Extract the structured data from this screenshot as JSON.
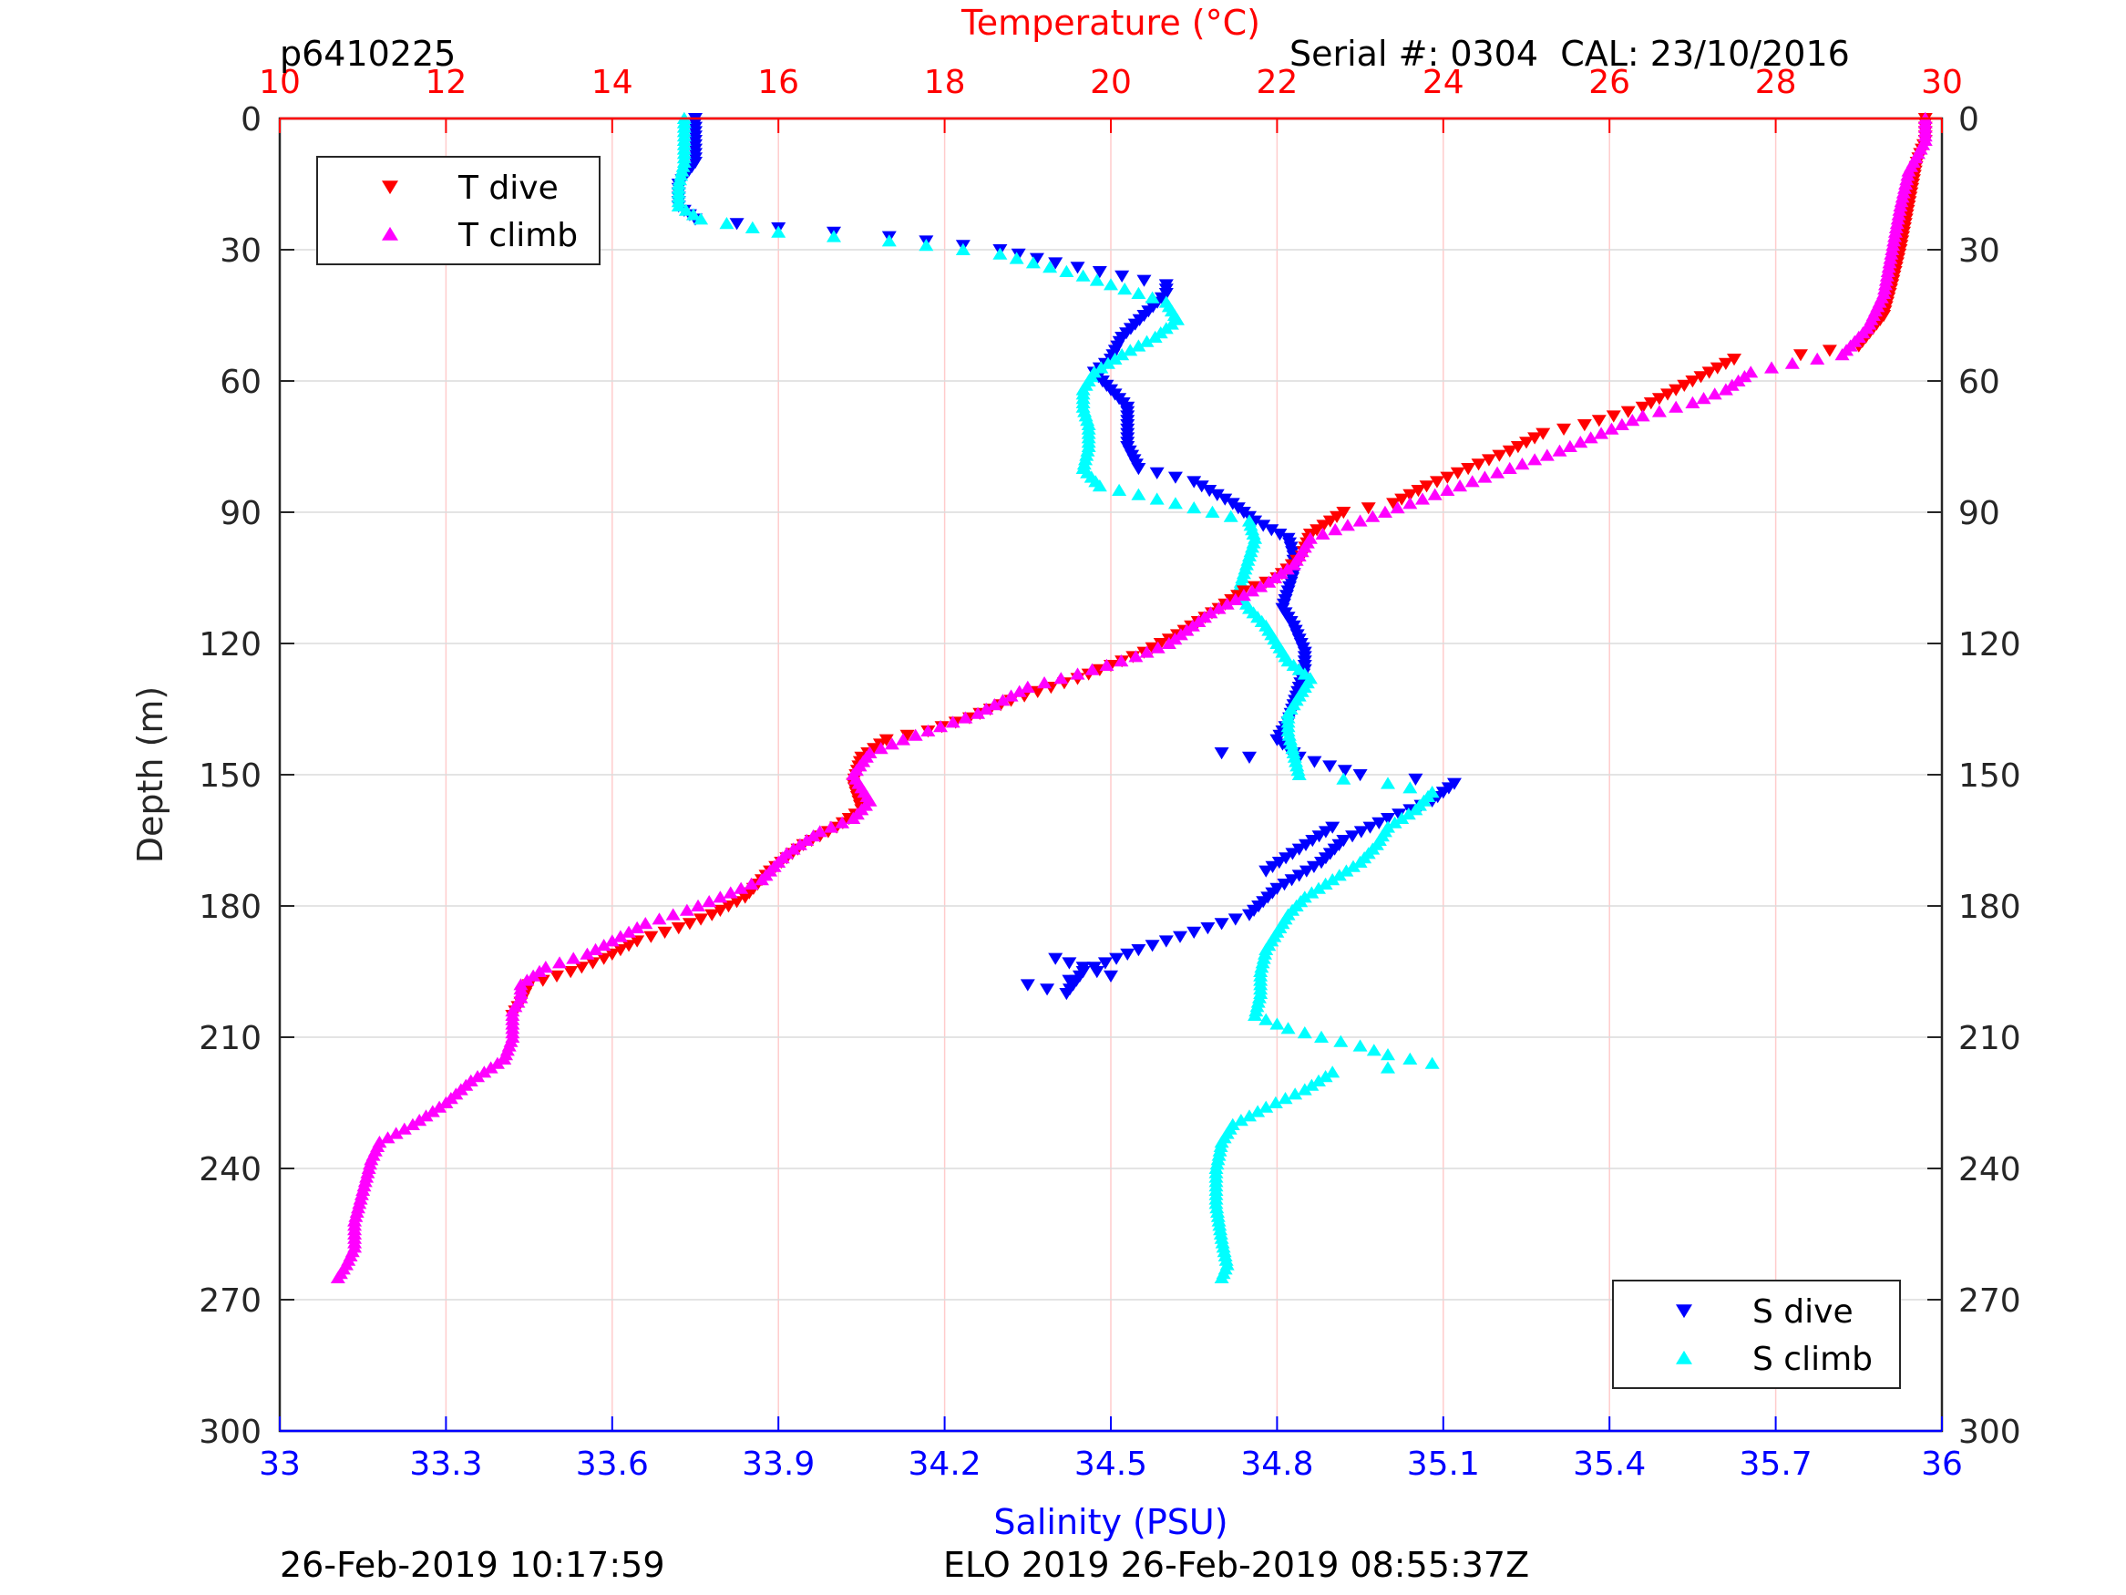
{
  "header": {
    "profile_id": "p6410225",
    "serial": "Serial #: 0304  CAL: 23/10/2016"
  },
  "footer": {
    "left": "26-Feb-2019 10:17:59",
    "center": "ELO 2019 26-Feb-2019 08:55:37Z"
  },
  "chart_data": {
    "type": "scatter",
    "top_axis": {
      "label": "Temperature (°C)",
      "range": [
        10,
        30
      ],
      "ticks": [
        10,
        12,
        14,
        16,
        18,
        20,
        22,
        24,
        26,
        28,
        30
      ],
      "color": "#ff0000"
    },
    "bottom_axis": {
      "label": "Salinity (PSU)",
      "range": [
        33,
        36
      ],
      "ticks": [
        "33",
        "33.3",
        "33.6",
        "33.9",
        "34.2",
        "34.5",
        "34.8",
        "35.1",
        "35.4",
        "35.7",
        "36"
      ],
      "color": "#0000ff"
    },
    "y_axis": {
      "label": "Depth (m)",
      "range": [
        0,
        300
      ],
      "reversed": true,
      "ticks": [
        0,
        30,
        60,
        90,
        120,
        150,
        180,
        210,
        240,
        270,
        300
      ]
    },
    "grid": true,
    "legends": [
      {
        "position": "top-left",
        "entries": [
          {
            "label": "T dive",
            "series": "t_dive"
          },
          {
            "label": "T climb",
            "series": "t_climb"
          }
        ]
      },
      {
        "position": "bottom-right",
        "entries": [
          {
            "label": "S dive",
            "series": "s_dive"
          },
          {
            "label": "S climb",
            "series": "s_climb"
          }
        ]
      }
    ],
    "series": {
      "t_dive": {
        "name": "T dive",
        "axis": "temperature",
        "marker": "triangle-down",
        "color": "#ff0000",
        "points": [
          [
            29.8,
            0
          ],
          [
            29.8,
            5
          ],
          [
            29.7,
            10
          ],
          [
            29.6,
            20
          ],
          [
            29.5,
            30
          ],
          [
            29.4,
            38
          ],
          [
            29.3,
            45
          ],
          [
            29.0,
            52
          ],
          [
            28.3,
            54
          ],
          [
            27.5,
            55
          ],
          [
            27.2,
            58
          ],
          [
            26.8,
            62
          ],
          [
            26.4,
            66
          ],
          [
            25.7,
            70
          ],
          [
            25.2,
            72
          ],
          [
            24.8,
            76
          ],
          [
            24.3,
            80
          ],
          [
            23.8,
            84
          ],
          [
            23.4,
            88
          ],
          [
            22.8,
            90
          ],
          [
            22.4,
            95
          ],
          [
            22.3,
            100
          ],
          [
            22.0,
            105
          ],
          [
            21.6,
            108
          ],
          [
            21.3,
            112
          ],
          [
            20.8,
            118
          ],
          [
            20.4,
            122
          ],
          [
            19.6,
            128
          ],
          [
            18.8,
            133
          ],
          [
            18.3,
            137
          ],
          [
            17.8,
            140
          ],
          [
            17.3,
            142
          ],
          [
            17.0,
            146
          ],
          [
            16.9,
            152
          ],
          [
            17.0,
            158
          ],
          [
            16.7,
            162
          ],
          [
            16.3,
            166
          ],
          [
            15.9,
            172
          ],
          [
            15.6,
            178
          ],
          [
            15.2,
            182
          ],
          [
            14.8,
            185
          ],
          [
            14.3,
            188
          ],
          [
            13.9,
            192
          ],
          [
            13.5,
            195
          ],
          [
            13.0,
            198
          ],
          [
            12.9,
            202
          ],
          [
            12.8,
            205
          ]
        ]
      },
      "t_climb": {
        "name": "T climb",
        "axis": "temperature",
        "marker": "triangle-up",
        "color": "#ff00ff",
        "points": [
          [
            29.8,
            0
          ],
          [
            29.8,
            5
          ],
          [
            29.6,
            12
          ],
          [
            29.5,
            20
          ],
          [
            29.4,
            30
          ],
          [
            29.3,
            40
          ],
          [
            29.1,
            48
          ],
          [
            28.8,
            54
          ],
          [
            28.2,
            56
          ],
          [
            27.7,
            58
          ],
          [
            27.4,
            62
          ],
          [
            27.0,
            65
          ],
          [
            26.4,
            68
          ],
          [
            25.9,
            72
          ],
          [
            25.4,
            76
          ],
          [
            24.8,
            80
          ],
          [
            24.2,
            84
          ],
          [
            23.6,
            88
          ],
          [
            23.0,
            92
          ],
          [
            22.4,
            96
          ],
          [
            22.2,
            102
          ],
          [
            21.9,
            106
          ],
          [
            21.5,
            110
          ],
          [
            21.2,
            113
          ],
          [
            20.7,
            120
          ],
          [
            20.3,
            123
          ],
          [
            19.6,
            127
          ],
          [
            19.0,
            130
          ],
          [
            18.4,
            136
          ],
          [
            17.8,
            140
          ],
          [
            17.5,
            142
          ],
          [
            17.1,
            145
          ],
          [
            16.9,
            150
          ],
          [
            17.1,
            156
          ],
          [
            16.9,
            160
          ],
          [
            16.5,
            163
          ],
          [
            16.1,
            168
          ],
          [
            15.8,
            174
          ],
          [
            15.3,
            178
          ],
          [
            14.9,
            181
          ],
          [
            14.4,
            184
          ],
          [
            14.0,
            188
          ],
          [
            13.7,
            191
          ],
          [
            13.2,
            194
          ],
          [
            12.9,
            198
          ],
          [
            12.9,
            201
          ],
          [
            12.8,
            204
          ],
          [
            12.8,
            210
          ],
          [
            12.7,
            215
          ],
          [
            12.3,
            220
          ],
          [
            12.0,
            225
          ],
          [
            11.6,
            230
          ],
          [
            11.2,
            234
          ],
          [
            11.1,
            238
          ],
          [
            11.0,
            245
          ],
          [
            10.9,
            252
          ],
          [
            10.9,
            258
          ],
          [
            10.8,
            262
          ],
          [
            10.7,
            265
          ]
        ]
      },
      "s_dive": {
        "name": "S dive",
        "axis": "salinity",
        "marker": "triangle-down",
        "color": "#0000ff",
        "points": [
          [
            33.75,
            0
          ],
          [
            33.75,
            10
          ],
          [
            33.72,
            15
          ],
          [
            33.72,
            20
          ],
          [
            33.75,
            23
          ],
          [
            33.9,
            25
          ],
          [
            34.1,
            27
          ],
          [
            34.3,
            30
          ],
          [
            34.4,
            33
          ],
          [
            34.6,
            38
          ],
          [
            34.6,
            40
          ],
          [
            34.56,
            45
          ],
          [
            34.52,
            50
          ],
          [
            34.5,
            55
          ],
          [
            34.47,
            58
          ],
          [
            34.5,
            62
          ],
          [
            34.53,
            66
          ],
          [
            34.53,
            70
          ],
          [
            34.53,
            75
          ],
          [
            34.55,
            80
          ],
          [
            34.65,
            83
          ],
          [
            34.72,
            88
          ],
          [
            34.76,
            92
          ],
          [
            34.82,
            96
          ],
          [
            34.83,
            100
          ],
          [
            34.83,
            104
          ],
          [
            34.82,
            108
          ],
          [
            34.81,
            112
          ],
          [
            34.83,
            116
          ],
          [
            34.85,
            122
          ],
          [
            34.85,
            126
          ],
          [
            34.84,
            130
          ],
          [
            34.83,
            134
          ],
          [
            34.82,
            138
          ],
          [
            34.8,
            142
          ],
          [
            34.84,
            146
          ],
          [
            34.95,
            150
          ],
          [
            35.05,
            151
          ],
          [
            35.12,
            152
          ],
          [
            35.08,
            156
          ],
          [
            35.0,
            160
          ],
          [
            34.92,
            165
          ],
          [
            34.88,
            170
          ],
          [
            34.8,
            176
          ],
          [
            34.75,
            182
          ],
          [
            34.65,
            186
          ],
          [
            34.55,
            190
          ],
          [
            34.45,
            195
          ],
          [
            34.42,
            200
          ],
          [
            34.35,
            198
          ],
          [
            34.5,
            196
          ],
          [
            34.4,
            192
          ],
          [
            34.7,
            145
          ],
          [
            34.75,
            146
          ],
          [
            34.9,
            162
          ],
          [
            34.78,
            172
          ]
        ]
      },
      "s_climb": {
        "name": "S climb",
        "axis": "salinity",
        "marker": "triangle-up",
        "color": "#00ffff",
        "points": [
          [
            33.73,
            0
          ],
          [
            33.73,
            10
          ],
          [
            33.72,
            15
          ],
          [
            33.72,
            20
          ],
          [
            33.76,
            23
          ],
          [
            33.9,
            26
          ],
          [
            34.1,
            28
          ],
          [
            34.3,
            31
          ],
          [
            34.45,
            36
          ],
          [
            34.6,
            42
          ],
          [
            34.62,
            46
          ],
          [
            34.58,
            50
          ],
          [
            34.52,
            54
          ],
          [
            34.47,
            58
          ],
          [
            34.45,
            62
          ],
          [
            34.45,
            66
          ],
          [
            34.46,
            70
          ],
          [
            34.46,
            75
          ],
          [
            34.45,
            80
          ],
          [
            34.48,
            84
          ],
          [
            34.55,
            86
          ],
          [
            34.65,
            89
          ],
          [
            34.75,
            92
          ],
          [
            34.76,
            96
          ],
          [
            34.75,
            100
          ],
          [
            34.74,
            104
          ],
          [
            34.73,
            108
          ],
          [
            34.75,
            112
          ],
          [
            34.78,
            116
          ],
          [
            34.8,
            120
          ],
          [
            34.82,
            124
          ],
          [
            34.86,
            128
          ],
          [
            34.84,
            132
          ],
          [
            34.82,
            136
          ],
          [
            34.82,
            140
          ],
          [
            34.83,
            145
          ],
          [
            34.84,
            150
          ],
          [
            34.92,
            151
          ],
          [
            35.0,
            152
          ],
          [
            35.08,
            154
          ],
          [
            35.05,
            158
          ],
          [
            35.0,
            162
          ],
          [
            34.98,
            166
          ],
          [
            34.95,
            170
          ],
          [
            34.9,
            174
          ],
          [
            34.85,
            178
          ],
          [
            34.82,
            182
          ],
          [
            34.8,
            186
          ],
          [
            34.78,
            190
          ],
          [
            34.77,
            195
          ],
          [
            34.77,
            200
          ],
          [
            34.76,
            205
          ],
          [
            34.82,
            208
          ],
          [
            34.88,
            210
          ],
          [
            34.95,
            212
          ],
          [
            35.0,
            214
          ],
          [
            35.08,
            216
          ],
          [
            35.0,
            217
          ],
          [
            34.9,
            218
          ],
          [
            34.85,
            222
          ],
          [
            34.78,
            226
          ],
          [
            34.72,
            230
          ],
          [
            34.7,
            234
          ],
          [
            34.69,
            240
          ],
          [
            34.69,
            248
          ],
          [
            34.7,
            256
          ],
          [
            34.71,
            262
          ],
          [
            34.7,
            265
          ]
        ]
      }
    }
  }
}
